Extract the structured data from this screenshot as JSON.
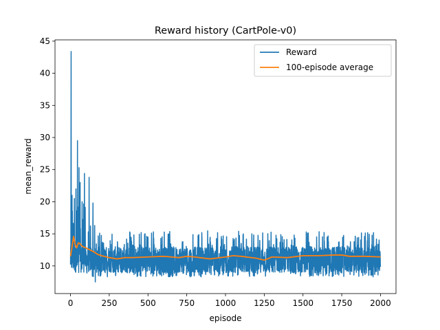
{
  "chart_data": {
    "type": "line",
    "title": "Reward history (CartPole-v0)",
    "xlabel": "episode",
    "ylabel": "mean_reward",
    "xlim": [
      -100,
      2100
    ],
    "ylim": [
      5.7,
      45.2
    ],
    "xticks": [
      0,
      250,
      500,
      750,
      1000,
      1250,
      1500,
      1750,
      2000
    ],
    "yticks": [
      10,
      15,
      20,
      25,
      30,
      35,
      40,
      45
    ],
    "grid": false,
    "legend_position": "top-right",
    "series": [
      {
        "name": "Reward",
        "color": "#1f77b4",
        "x_range": [
          0,
          2000
        ],
        "notes_on_shape": "noisy per-episode values, mostly between ~8 and ~15, with large spikes early on",
        "spikes": [
          {
            "x": 4,
            "y": 43.4
          },
          {
            "x": 10,
            "y": 21.0
          },
          {
            "x": 25,
            "y": 20.5
          },
          {
            "x": 35,
            "y": 22.0
          },
          {
            "x": 45,
            "y": 29.5
          },
          {
            "x": 55,
            "y": 25.3
          },
          {
            "x": 62,
            "y": 23.0
          },
          {
            "x": 75,
            "y": 20.0
          },
          {
            "x": 90,
            "y": 24.4
          },
          {
            "x": 120,
            "y": 23.8
          },
          {
            "x": 145,
            "y": 19.8
          },
          {
            "x": 160,
            "y": 7.5
          }
        ],
        "typical_low": 8.3,
        "typical_high": 15.5
      },
      {
        "name": "100-episode average",
        "color": "#ff7f0e",
        "x": [
          0,
          10,
          20,
          30,
          40,
          50,
          60,
          70,
          80,
          100,
          125,
          150,
          175,
          200,
          250,
          300,
          350,
          400,
          500,
          600,
          700,
          750,
          800,
          900,
          1000,
          1050,
          1100,
          1200,
          1250,
          1300,
          1400,
          1500,
          1600,
          1700,
          1750,
          1800,
          1900,
          2000
        ],
        "y": [
          11.5,
          13.0,
          14.6,
          13.3,
          12.8,
          13.6,
          13.5,
          13.2,
          13.0,
          12.8,
          12.5,
          12.2,
          11.8,
          11.6,
          11.3,
          11.1,
          11.3,
          11.3,
          11.4,
          11.5,
          11.3,
          11.5,
          11.4,
          11.1,
          11.4,
          11.6,
          11.5,
          11.2,
          10.9,
          11.4,
          11.3,
          11.6,
          11.6,
          11.7,
          11.7,
          11.5,
          11.5,
          11.4
        ]
      }
    ]
  }
}
